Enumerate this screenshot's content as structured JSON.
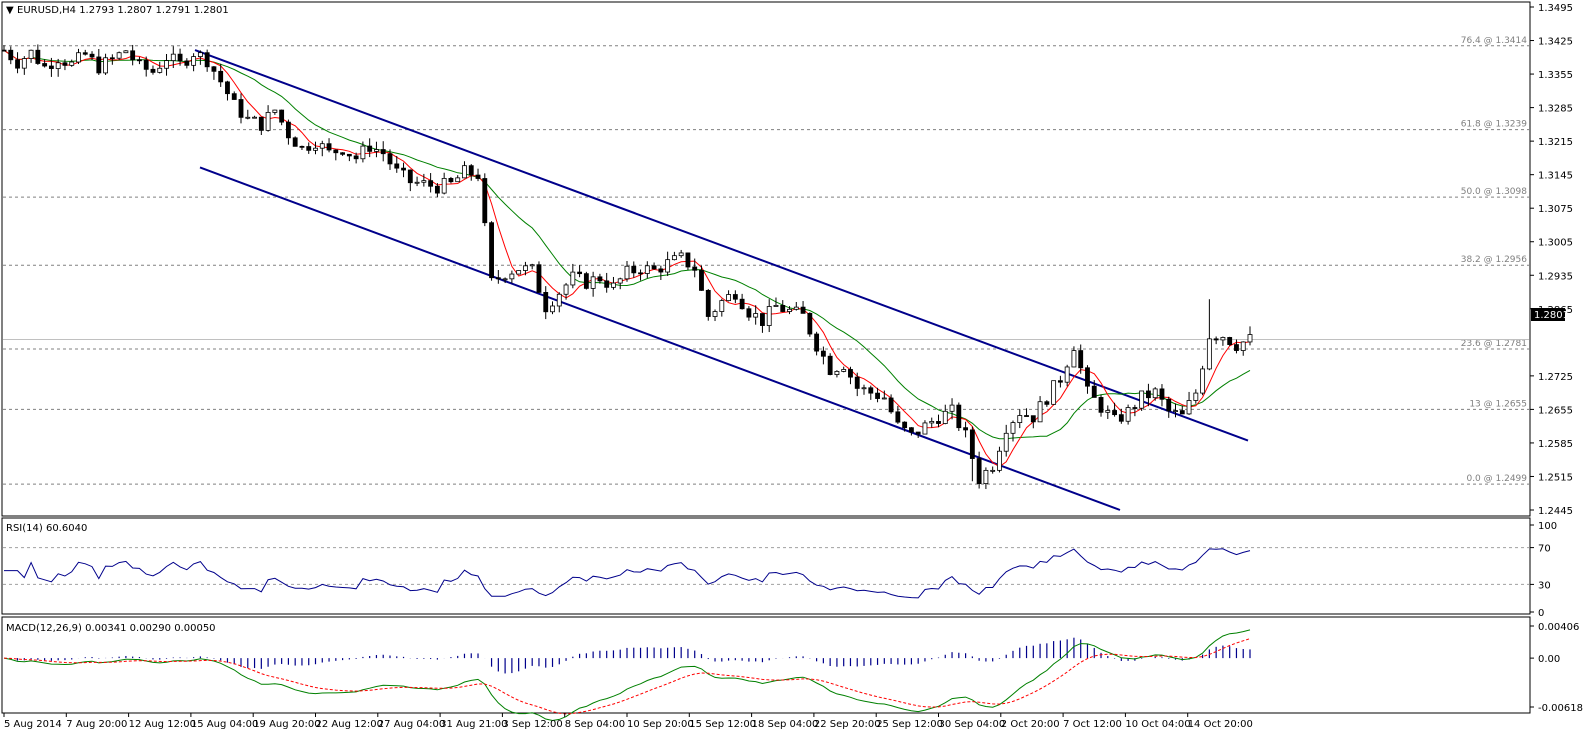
{
  "window": {
    "title": "EURUSD,H4  1.2793 1.2807 1.2791 1.2801",
    "collapse_glyph": "▼"
  },
  "price_axis": {
    "ticks": [
      "1.3495",
      "1.3425",
      "1.3355",
      "1.3285",
      "1.3215",
      "1.3145",
      "1.3075",
      "1.3005",
      "1.2935",
      "1.2865",
      "1.2725",
      "1.2655",
      "1.2585",
      "1.2515",
      "1.2445"
    ],
    "current_price": "1.2801",
    "current_price_color": "#000000"
  },
  "fib_levels": [
    {
      "label": "76.4 @ 1.3414",
      "value": 1.3414
    },
    {
      "label": "61.8 @ 1.3239",
      "value": 1.3239
    },
    {
      "label": "50.0 @ 1.3098",
      "value": 1.3098
    },
    {
      "label": "38.2 @ 1.2956",
      "value": 1.2956
    },
    {
      "label": "23.6 @ 1.2781",
      "value": 1.2781
    },
    {
      "label": "13 @ 1.2655",
      "value": 1.2655
    },
    {
      "label": "0.0 @ 1.2499",
      "value": 1.2499
    }
  ],
  "time_axis": [
    "5 Aug 2014",
    "7 Aug 20:00",
    "12 Aug 12:00",
    "15 Aug 04:00",
    "19 Aug 20:00",
    "22 Aug 12:00",
    "27 Aug 04:00",
    "31 Aug 21:00",
    "3 Sep 12:00",
    "8 Sep 04:00",
    "10 Sep 20:00",
    "15 Sep 12:00",
    "18 Sep 04:00",
    "22 Sep 20:00",
    "25 Sep 12:00",
    "30 Sep 04:00",
    "2 Oct 20:00",
    "7 Oct 12:00",
    "10 Oct 04:00",
    "14 Oct 20:00"
  ],
  "rsi": {
    "label": "RSI(14) 60.6040",
    "ticks": [
      "100",
      "70",
      "30",
      "0"
    ],
    "levels": [
      70,
      30
    ]
  },
  "macd": {
    "label": "MACD(12,26,9) 0.00341 0.00290 0.00050",
    "ticks": [
      "0.00406",
      "0.00",
      "-0.00618"
    ]
  },
  "colors": {
    "channel": "#00008B",
    "ma_fast": "#FF0000",
    "ma_slow": "#008000",
    "rsi_line": "#00008B",
    "macd_hist": "#00008B",
    "macd_main": "#008000",
    "macd_signal": "#FF0000"
  },
  "chart_data": [
    {
      "type": "candlestick",
      "title": "EURUSD,H4",
      "ylim": [
        1.2445,
        1.3495
      ],
      "close_path": [
        [
          0,
          1.3405
        ],
        [
          2,
          1.338
        ],
        [
          4,
          1.34
        ],
        [
          6,
          1.337
        ],
        [
          8,
          1.339
        ],
        [
          10,
          1.3375
        ],
        [
          12,
          1.3395
        ],
        [
          14,
          1.337
        ],
        [
          16,
          1.3385
        ],
        [
          18,
          1.3405
        ],
        [
          20,
          1.337
        ],
        [
          22,
          1.336
        ],
        [
          24,
          1.339
        ],
        [
          26,
          1.3375
        ],
        [
          28,
          1.34
        ],
        [
          30,
          1.3385
        ],
        [
          32,
          1.334
        ],
        [
          34,
          1.329
        ],
        [
          36,
          1.326
        ],
        [
          38,
          1.325
        ],
        [
          40,
          1.328
        ],
        [
          42,
          1.323
        ],
        [
          44,
          1.32
        ],
        [
          46,
          1.3215
        ],
        [
          48,
          1.319
        ],
        [
          50,
          1.32
        ],
        [
          52,
          1.318
        ],
        [
          54,
          1.3205
        ],
        [
          56,
          1.319
        ],
        [
          58,
          1.315
        ],
        [
          60,
          1.313
        ],
        [
          62,
          1.3125
        ],
        [
          64,
          1.312
        ],
        [
          66,
          1.3125
        ],
        [
          68,
          1.315
        ],
        [
          70,
          1.3145
        ],
        [
          72,
          1.292
        ],
        [
          74,
          1.294
        ],
        [
          76,
          1.295
        ],
        [
          78,
          1.2945
        ],
        [
          80,
          1.287
        ],
        [
          82,
          1.29
        ],
        [
          84,
          1.293
        ],
        [
          86,
          1.292
        ],
        [
          88,
          1.293
        ],
        [
          90,
          1.291
        ],
        [
          92,
          1.294
        ],
        [
          94,
          1.295
        ],
        [
          96,
          1.2945
        ],
        [
          98,
          1.296
        ],
        [
          100,
          1.297
        ],
        [
          102,
          1.295
        ],
        [
          104,
          1.285
        ],
        [
          106,
          1.288
        ],
        [
          108,
          1.29
        ],
        [
          110,
          1.286
        ],
        [
          112,
          1.284
        ],
        [
          114,
          1.287
        ],
        [
          116,
          1.286
        ],
        [
          118,
          1.285
        ],
        [
          120,
          1.279
        ],
        [
          122,
          1.274
        ],
        [
          124,
          1.275
        ],
        [
          126,
          1.27
        ],
        [
          128,
          1.269
        ],
        [
          130,
          1.268
        ],
        [
          132,
          1.262
        ],
        [
          134,
          1.26
        ],
        [
          136,
          1.262
        ],
        [
          138,
          1.264
        ],
        [
          140,
          1.265
        ],
        [
          142,
          1.26
        ],
        [
          144,
          1.251
        ],
        [
          146,
          1.254
        ],
        [
          148,
          1.262
        ],
        [
          150,
          1.265
        ],
        [
          152,
          1.264
        ],
        [
          154,
          1.268
        ],
        [
          156,
          1.272
        ],
        [
          158,
          1.279
        ],
        [
          160,
          1.269
        ],
        [
          162,
          1.266
        ],
        [
          164,
          1.263
        ],
        [
          166,
          1.265
        ],
        [
          168,
          1.268
        ],
        [
          170,
          1.269
        ],
        [
          172,
          1.265
        ],
        [
          174,
          1.264
        ],
        [
          176,
          1.269
        ],
        [
          178,
          1.281
        ],
        [
          180,
          1.281
        ],
        [
          182,
          1.279
        ],
        [
          184,
          1.2801
        ]
      ],
      "channel_upper": [
        [
          1.3405,
          1.342
        ],
        [
          1.259,
          1.26
        ]
      ],
      "channel_lower": [
        [
          1.316,
          1.3175
        ],
        [
          1.2445,
          1.245
        ]
      ]
    },
    {
      "type": "line",
      "title": "RSI(14) 60.6040",
      "ylim": [
        0,
        100
      ]
    },
    {
      "type": "bar",
      "title": "MACD(12,26,9) 0.00341 0.00290 0.00050",
      "ylim": [
        -0.00618,
        0.00406
      ]
    }
  ]
}
